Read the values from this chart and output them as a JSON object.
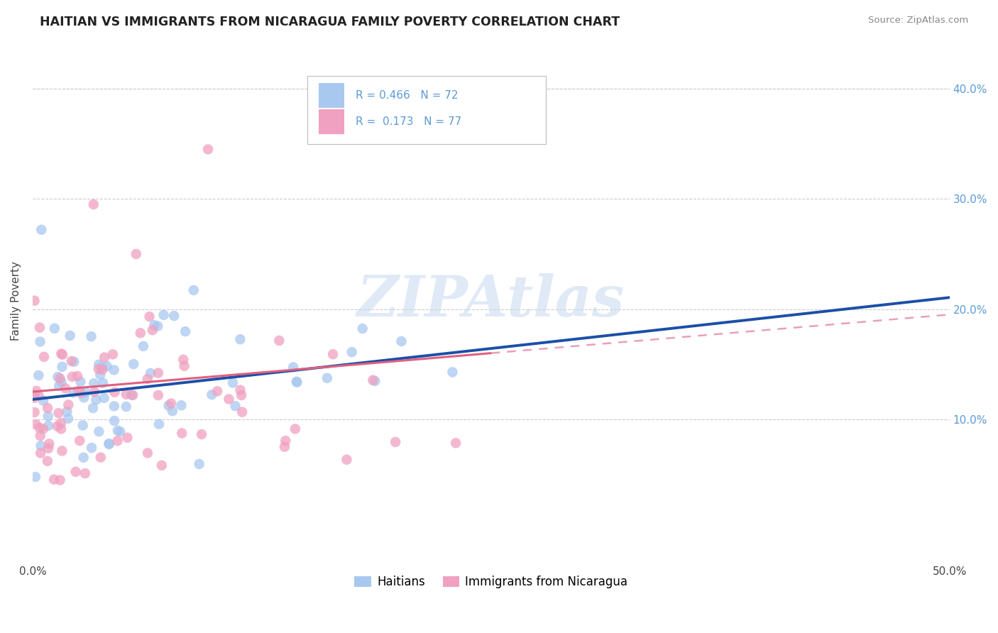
{
  "title": "HAITIAN VS IMMIGRANTS FROM NICARAGUA FAMILY POVERTY CORRELATION CHART",
  "source": "Source: ZipAtlas.com",
  "ylabel": "Family Poverty",
  "xmin": 0.0,
  "xmax": 0.5,
  "ymin": -0.03,
  "ymax": 0.445,
  "blue_color": "#A8C8F0",
  "pink_color": "#F0A0C0",
  "blue_line_color": "#1B4FA8",
  "pink_line_solid_color": "#E06080",
  "pink_line_dash_color": "#E8A0B8",
  "R_blue": 0.466,
  "N_blue": 72,
  "R_pink": 0.173,
  "N_pink": 77,
  "legend_label_blue": "Haitians",
  "legend_label_pink": "Immigrants from Nicaragua",
  "watermark": "ZIPAtlas",
  "watermark_color": "#C8D8F0",
  "grid_color": "#CCCCCC",
  "tick_label_color": "#5B9BD5",
  "title_color": "#222222",
  "source_color": "#888888",
  "ylabel_color": "#444444"
}
